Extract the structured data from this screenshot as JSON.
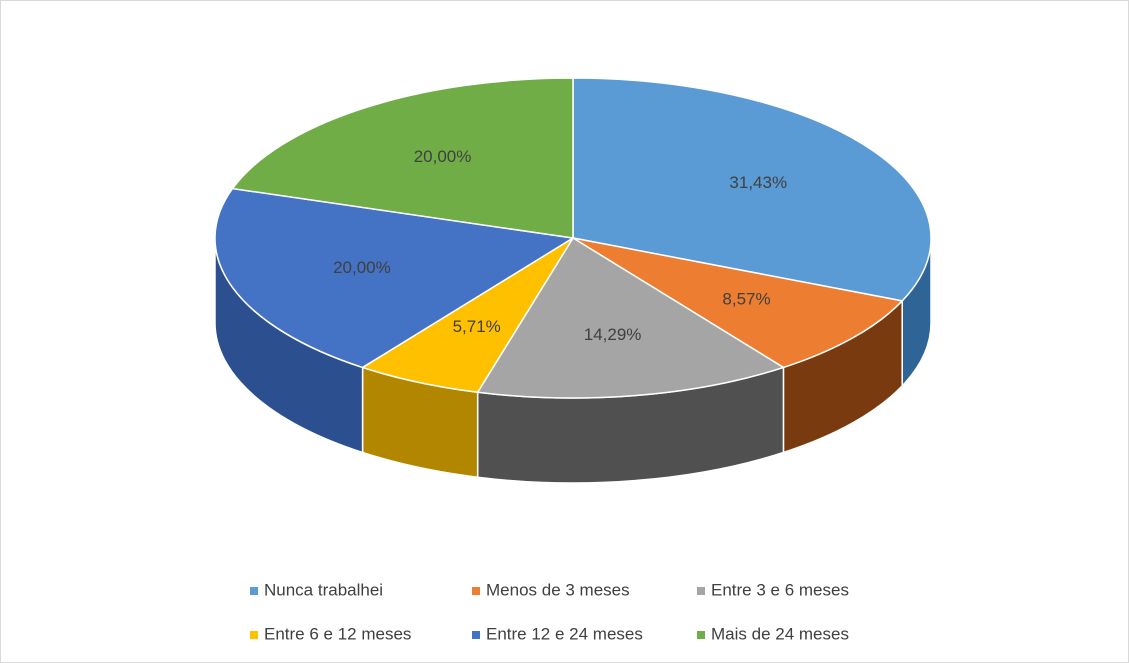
{
  "chart_data": {
    "type": "pie",
    "categories": [
      "Nunca trabalhei",
      "Menos de 3 meses",
      "Entre 3 e 6 meses",
      "Entre 6 e 12 meses",
      "Entre 12 e 24 meses",
      "Mais de 24 meses"
    ],
    "values": [
      31.43,
      8.57,
      14.29,
      5.71,
      20.0,
      20.0
    ],
    "value_labels": [
      "31,43%",
      "8,57%",
      "14,29%",
      "5,71%",
      "20,00%",
      "20,00%"
    ],
    "colors": [
      "#5b9bd5",
      "#ed7d31",
      "#a5a5a5",
      "#ffc000",
      "#4472c4",
      "#70ad47"
    ],
    "side_colors": [
      "#2f6497",
      "#7a3a10",
      "#505050",
      "#b38600",
      "#2c4f8f",
      "#3f6b26"
    ],
    "legend": "bottom"
  }
}
